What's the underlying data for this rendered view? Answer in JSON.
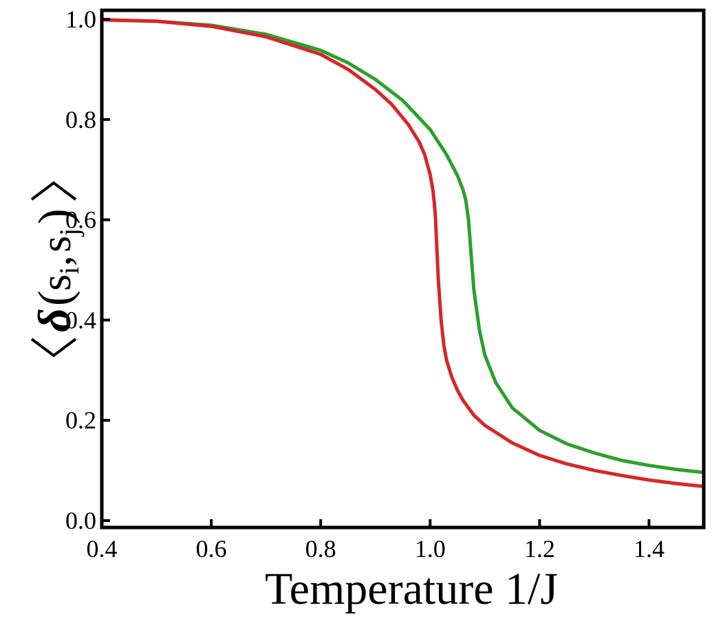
{
  "chart_data": {
    "type": "line",
    "title": "",
    "xlabel": "Temperature 1/J",
    "ylabel": {
      "delta": "δ",
      "open": "(",
      "s1": "s",
      "i_sub": "i",
      "comma": ",",
      "s2": "s",
      "j_sub": "j",
      "close": ")"
    },
    "xlim": [
      0.4,
      1.5
    ],
    "ylim": [
      0.0,
      1.0
    ],
    "xticks": [
      "0.4",
      "0.6",
      "0.8",
      "1.0",
      "1.2",
      "1.4"
    ],
    "yticks": [
      "0.0",
      "0.2",
      "0.4",
      "0.6",
      "0.8",
      "1.0"
    ],
    "grid": false,
    "series": [
      {
        "color": "#2ca02c",
        "x": [
          0.4,
          0.5,
          0.6,
          0.7,
          0.8,
          0.85,
          0.9,
          0.95,
          1.0,
          1.03,
          1.05,
          1.06,
          1.065,
          1.07,
          1.075,
          1.08,
          1.09,
          1.1,
          1.12,
          1.15,
          1.2,
          1.25,
          1.3,
          1.35,
          1.4,
          1.45,
          1.5
        ],
        "y": [
          0.999,
          0.996,
          0.988,
          0.97,
          0.938,
          0.913,
          0.88,
          0.838,
          0.78,
          0.73,
          0.688,
          0.66,
          0.64,
          0.6,
          0.53,
          0.46,
          0.38,
          0.33,
          0.275,
          0.225,
          0.18,
          0.153,
          0.135,
          0.12,
          0.11,
          0.102,
          0.096
        ]
      },
      {
        "color": "#d62728",
        "x": [
          0.4,
          0.5,
          0.6,
          0.7,
          0.8,
          0.85,
          0.9,
          0.93,
          0.96,
          0.98,
          0.99,
          1.0,
          1.005,
          1.008,
          1.01,
          1.012,
          1.015,
          1.02,
          1.025,
          1.03,
          1.04,
          1.05,
          1.06,
          1.08,
          1.1,
          1.15,
          1.2,
          1.25,
          1.3,
          1.35,
          1.4,
          1.45,
          1.5
        ],
        "y": [
          0.999,
          0.996,
          0.986,
          0.965,
          0.93,
          0.9,
          0.86,
          0.83,
          0.79,
          0.755,
          0.73,
          0.69,
          0.66,
          0.63,
          0.6,
          0.55,
          0.48,
          0.4,
          0.35,
          0.32,
          0.285,
          0.26,
          0.24,
          0.21,
          0.19,
          0.155,
          0.13,
          0.113,
          0.1,
          0.09,
          0.081,
          0.074,
          0.068
        ]
      }
    ]
  }
}
